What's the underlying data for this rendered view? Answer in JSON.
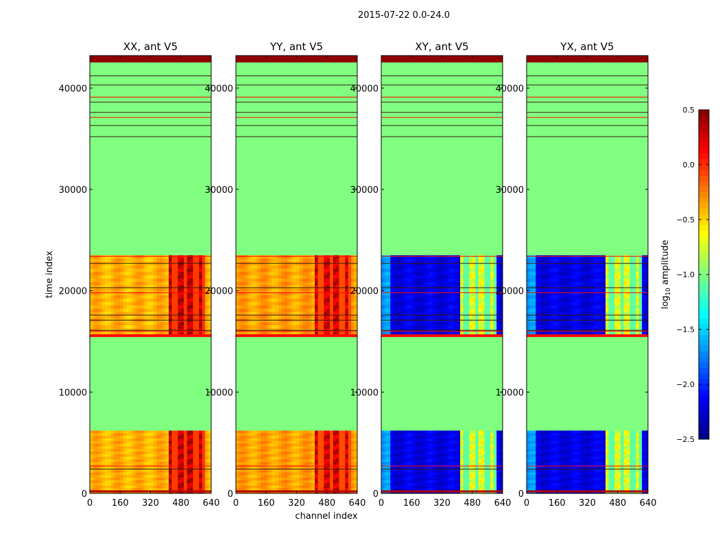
{
  "chart_data": {
    "type": "heatmap",
    "suptitle": "2015-07-22 0.0-24.0",
    "xlabel": "channel index",
    "ylabel": "time index",
    "xlim": [
      0,
      640
    ],
    "ylim": [
      0,
      43200
    ],
    "x_ticks": [
      "0",
      "160",
      "320",
      "480",
      "640"
    ],
    "y_ticks": [
      "0",
      "10000",
      "20000",
      "30000",
      "40000"
    ],
    "colorbar": {
      "label": "log10 amplitude",
      "label_base": "log",
      "label_sub": "10",
      "label_rest": " amplitude",
      "range": [
        -2.5,
        0.5
      ],
      "ticks": [
        "0.5",
        "0.0",
        "−0.5",
        "−1.0",
        "−1.5",
        "−2.0",
        "−2.5"
      ],
      "colormap": "jet"
    },
    "fill_value": -1.0,
    "observation_blocks": [
      [
        0,
        6200
      ],
      [
        15600,
        23500
      ]
    ],
    "rfi_channels": [
      [
        410,
        600
      ]
    ],
    "flag_rows": [
      16000,
      16100,
      2400,
      2700,
      17100,
      17600,
      19800,
      20300,
      22700,
      23400,
      35200,
      36300,
      37100,
      37600,
      38600,
      39100,
      40300,
      41200,
      43000
    ],
    "panels": [
      {
        "title": "XX, ant V5",
        "kind": "parallel",
        "base": -0.4,
        "rfi": 0.3
      },
      {
        "title": "YY, ant V5",
        "kind": "parallel",
        "base": -0.35,
        "rfi": 0.25
      },
      {
        "title": "XY, ant V5",
        "kind": "cross",
        "base": -2.2,
        "rfi": -0.7
      },
      {
        "title": "YX, ant V5",
        "kind": "cross",
        "base": -2.2,
        "rfi": -0.7
      }
    ]
  }
}
